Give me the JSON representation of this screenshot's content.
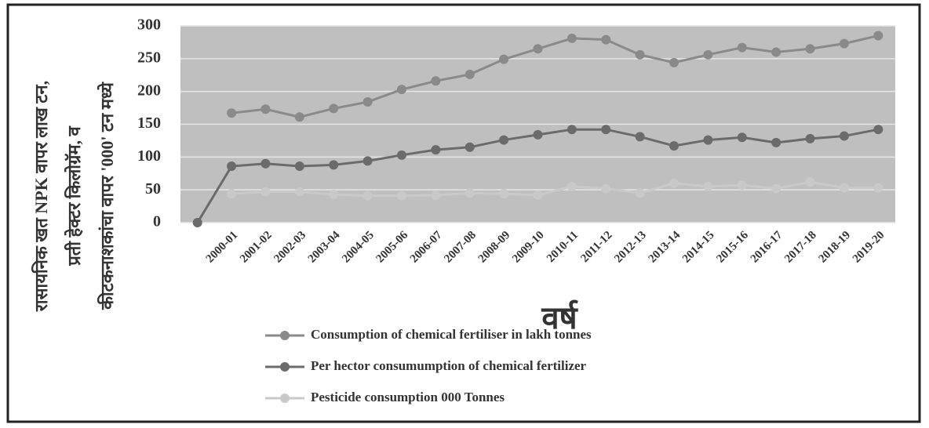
{
  "chart_data": {
    "type": "line",
    "y_label": [
      "रासायनिक खत NPK वापर लाख टन,",
      "प्रती हेक्टर किलोग्रॅम, व",
      "कीटकनाशकांचा वापर '000' टन मध्ये"
    ],
    "x_label": "वर्ष",
    "categories": [
      null,
      "2000-01",
      "2001-02",
      "2002-03",
      "2003-04",
      "2004-05",
      "2005-06",
      "2006-07",
      "2007-08",
      "2008-09",
      "2009-10",
      "2010-11",
      "2011-12",
      "2012-13",
      "2013-14",
      "2014-15",
      "2015-16",
      "2016-17",
      "2017-18",
      "2018-19",
      "2019-20"
    ],
    "series": [
      {
        "name": "Consumption of chemical fertiliser in lakh tonnes",
        "color": "#8a8a8a",
        "values": [
          null,
          167,
          173,
          161,
          174,
          184,
          203,
          216,
          226,
          249,
          265,
          281,
          279,
          256,
          244,
          256,
          267,
          260,
          265,
          273,
          285
        ]
      },
      {
        "name": "Per hector consumumption of chemical fertilizer",
        "color": "#6b6b6b",
        "values": [
          0,
          86,
          90,
          86,
          88,
          94,
          103,
          111,
          115,
          126,
          134,
          142,
          142,
          131,
          117,
          126,
          130,
          122,
          128,
          132,
          142
        ]
      },
      {
        "name": "Pesticide consumption 000 Tonnes",
        "color": "#c9c9c9",
        "values": [
          null,
          44,
          47,
          47,
          43,
          41,
          41,
          42,
          45,
          44,
          42,
          55,
          52,
          45,
          60,
          55,
          57,
          52,
          62,
          53,
          53
        ]
      }
    ],
    "ylim": [
      0,
      300
    ],
    "yticks": [
      0,
      50,
      100,
      150,
      200,
      250,
      300
    ],
    "grid": true
  }
}
